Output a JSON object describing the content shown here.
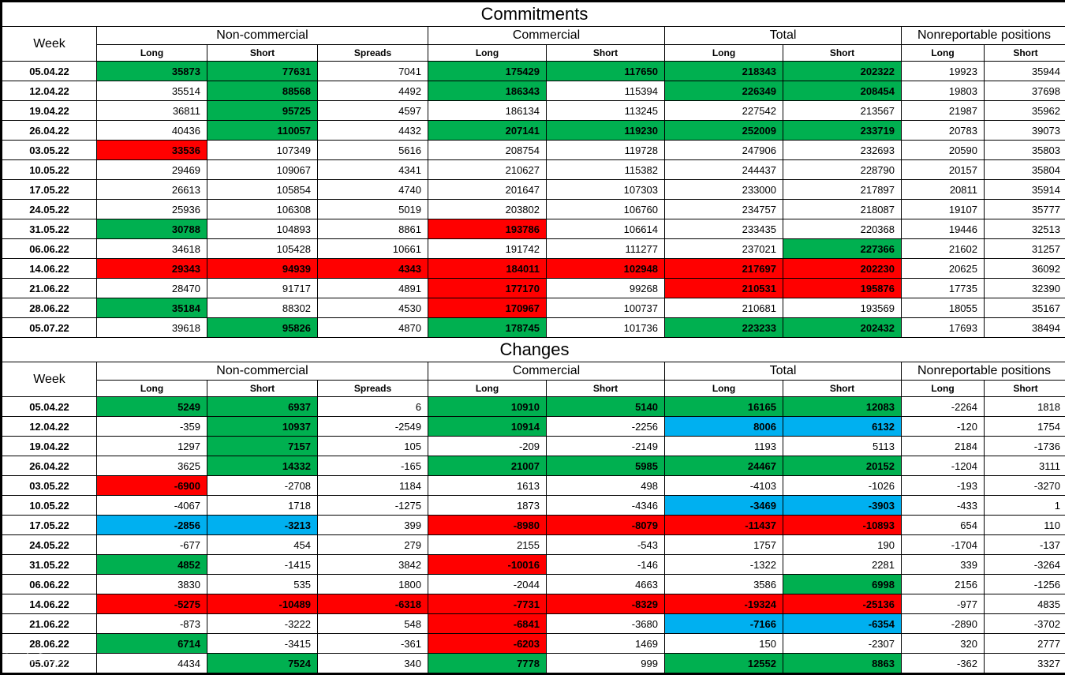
{
  "title1": "Commitments",
  "title2": "Changes",
  "week_label": "Week",
  "groups": {
    "noncom": "Non-commercial",
    "com": "Commercial",
    "tot": "Total",
    "nonrep": "Nonreportable positions"
  },
  "sub": {
    "long": "Long",
    "short": "Short",
    "spreads": "Spreads"
  },
  "colors": {
    "green": "#00b050",
    "red": "#ff0000",
    "blue": "#00b0f0",
    "none": "#ffffff"
  },
  "commitments": [
    {
      "week": "05.04.22",
      "nc_l": {
        "v": "35873",
        "c": "green"
      },
      "nc_s": {
        "v": "77631",
        "c": "green"
      },
      "nc_sp": {
        "v": "7041",
        "c": ""
      },
      "c_l": {
        "v": "175429",
        "c": "green"
      },
      "c_s": {
        "v": "117650",
        "c": "green"
      },
      "t_l": {
        "v": "218343",
        "c": "green"
      },
      "t_s": {
        "v": "202322",
        "c": "green"
      },
      "nr_l": {
        "v": "19923",
        "c": ""
      },
      "nr_s": {
        "v": "35944",
        "c": ""
      }
    },
    {
      "week": "12.04.22",
      "nc_l": {
        "v": "35514",
        "c": ""
      },
      "nc_s": {
        "v": "88568",
        "c": "green"
      },
      "nc_sp": {
        "v": "4492",
        "c": ""
      },
      "c_l": {
        "v": "186343",
        "c": "green"
      },
      "c_s": {
        "v": "115394",
        "c": ""
      },
      "t_l": {
        "v": "226349",
        "c": "green"
      },
      "t_s": {
        "v": "208454",
        "c": "green"
      },
      "nr_l": {
        "v": "19803",
        "c": ""
      },
      "nr_s": {
        "v": "37698",
        "c": ""
      }
    },
    {
      "week": "19.04.22",
      "nc_l": {
        "v": "36811",
        "c": ""
      },
      "nc_s": {
        "v": "95725",
        "c": "green"
      },
      "nc_sp": {
        "v": "4597",
        "c": ""
      },
      "c_l": {
        "v": "186134",
        "c": ""
      },
      "c_s": {
        "v": "113245",
        "c": ""
      },
      "t_l": {
        "v": "227542",
        "c": ""
      },
      "t_s": {
        "v": "213567",
        "c": ""
      },
      "nr_l": {
        "v": "21987",
        "c": ""
      },
      "nr_s": {
        "v": "35962",
        "c": ""
      }
    },
    {
      "week": "26.04.22",
      "nc_l": {
        "v": "40436",
        "c": ""
      },
      "nc_s": {
        "v": "110057",
        "c": "green"
      },
      "nc_sp": {
        "v": "4432",
        "c": ""
      },
      "c_l": {
        "v": "207141",
        "c": "green"
      },
      "c_s": {
        "v": "119230",
        "c": "green"
      },
      "t_l": {
        "v": "252009",
        "c": "green"
      },
      "t_s": {
        "v": "233719",
        "c": "green"
      },
      "nr_l": {
        "v": "20783",
        "c": ""
      },
      "nr_s": {
        "v": "39073",
        "c": ""
      }
    },
    {
      "week": "03.05.22",
      "nc_l": {
        "v": "33536",
        "c": "red"
      },
      "nc_s": {
        "v": "107349",
        "c": ""
      },
      "nc_sp": {
        "v": "5616",
        "c": ""
      },
      "c_l": {
        "v": "208754",
        "c": ""
      },
      "c_s": {
        "v": "119728",
        "c": ""
      },
      "t_l": {
        "v": "247906",
        "c": ""
      },
      "t_s": {
        "v": "232693",
        "c": ""
      },
      "nr_l": {
        "v": "20590",
        "c": ""
      },
      "nr_s": {
        "v": "35803",
        "c": ""
      }
    },
    {
      "week": "10.05.22",
      "nc_l": {
        "v": "29469",
        "c": ""
      },
      "nc_s": {
        "v": "109067",
        "c": ""
      },
      "nc_sp": {
        "v": "4341",
        "c": ""
      },
      "c_l": {
        "v": "210627",
        "c": ""
      },
      "c_s": {
        "v": "115382",
        "c": ""
      },
      "t_l": {
        "v": "244437",
        "c": ""
      },
      "t_s": {
        "v": "228790",
        "c": ""
      },
      "nr_l": {
        "v": "20157",
        "c": ""
      },
      "nr_s": {
        "v": "35804",
        "c": ""
      }
    },
    {
      "week": "17.05.22",
      "nc_l": {
        "v": "26613",
        "c": ""
      },
      "nc_s": {
        "v": "105854",
        "c": ""
      },
      "nc_sp": {
        "v": "4740",
        "c": ""
      },
      "c_l": {
        "v": "201647",
        "c": ""
      },
      "c_s": {
        "v": "107303",
        "c": ""
      },
      "t_l": {
        "v": "233000",
        "c": ""
      },
      "t_s": {
        "v": "217897",
        "c": ""
      },
      "nr_l": {
        "v": "20811",
        "c": ""
      },
      "nr_s": {
        "v": "35914",
        "c": ""
      }
    },
    {
      "week": "24.05.22",
      "nc_l": {
        "v": "25936",
        "c": ""
      },
      "nc_s": {
        "v": "106308",
        "c": ""
      },
      "nc_sp": {
        "v": "5019",
        "c": ""
      },
      "c_l": {
        "v": "203802",
        "c": ""
      },
      "c_s": {
        "v": "106760",
        "c": ""
      },
      "t_l": {
        "v": "234757",
        "c": ""
      },
      "t_s": {
        "v": "218087",
        "c": ""
      },
      "nr_l": {
        "v": "19107",
        "c": ""
      },
      "nr_s": {
        "v": "35777",
        "c": ""
      }
    },
    {
      "week": "31.05.22",
      "nc_l": {
        "v": "30788",
        "c": "green"
      },
      "nc_s": {
        "v": "104893",
        "c": ""
      },
      "nc_sp": {
        "v": "8861",
        "c": ""
      },
      "c_l": {
        "v": "193786",
        "c": "red"
      },
      "c_s": {
        "v": "106614",
        "c": ""
      },
      "t_l": {
        "v": "233435",
        "c": ""
      },
      "t_s": {
        "v": "220368",
        "c": ""
      },
      "nr_l": {
        "v": "19446",
        "c": ""
      },
      "nr_s": {
        "v": "32513",
        "c": ""
      }
    },
    {
      "week": "06.06.22",
      "nc_l": {
        "v": "34618",
        "c": ""
      },
      "nc_s": {
        "v": "105428",
        "c": ""
      },
      "nc_sp": {
        "v": "10661",
        "c": ""
      },
      "c_l": {
        "v": "191742",
        "c": ""
      },
      "c_s": {
        "v": "111277",
        "c": ""
      },
      "t_l": {
        "v": "237021",
        "c": ""
      },
      "t_s": {
        "v": "227366",
        "c": "green"
      },
      "nr_l": {
        "v": "21602",
        "c": ""
      },
      "nr_s": {
        "v": "31257",
        "c": ""
      }
    },
    {
      "week": "14.06.22",
      "nc_l": {
        "v": "29343",
        "c": "red"
      },
      "nc_s": {
        "v": "94939",
        "c": "red"
      },
      "nc_sp": {
        "v": "4343",
        "c": "red"
      },
      "c_l": {
        "v": "184011",
        "c": "red"
      },
      "c_s": {
        "v": "102948",
        "c": "red"
      },
      "t_l": {
        "v": "217697",
        "c": "red"
      },
      "t_s": {
        "v": "202230",
        "c": "red"
      },
      "nr_l": {
        "v": "20625",
        "c": ""
      },
      "nr_s": {
        "v": "36092",
        "c": ""
      }
    },
    {
      "week": "21.06.22",
      "nc_l": {
        "v": "28470",
        "c": ""
      },
      "nc_s": {
        "v": "91717",
        "c": ""
      },
      "nc_sp": {
        "v": "4891",
        "c": ""
      },
      "c_l": {
        "v": "177170",
        "c": "red"
      },
      "c_s": {
        "v": "99268",
        "c": ""
      },
      "t_l": {
        "v": "210531",
        "c": "red"
      },
      "t_s": {
        "v": "195876",
        "c": "red"
      },
      "nr_l": {
        "v": "17735",
        "c": ""
      },
      "nr_s": {
        "v": "32390",
        "c": ""
      }
    },
    {
      "week": "28.06.22",
      "nc_l": {
        "v": "35184",
        "c": "green"
      },
      "nc_s": {
        "v": "88302",
        "c": ""
      },
      "nc_sp": {
        "v": "4530",
        "c": ""
      },
      "c_l": {
        "v": "170967",
        "c": "red"
      },
      "c_s": {
        "v": "100737",
        "c": ""
      },
      "t_l": {
        "v": "210681",
        "c": ""
      },
      "t_s": {
        "v": "193569",
        "c": ""
      },
      "nr_l": {
        "v": "18055",
        "c": ""
      },
      "nr_s": {
        "v": "35167",
        "c": ""
      }
    },
    {
      "week": "05.07.22",
      "nc_l": {
        "v": "39618",
        "c": ""
      },
      "nc_s": {
        "v": "95826",
        "c": "green"
      },
      "nc_sp": {
        "v": "4870",
        "c": ""
      },
      "c_l": {
        "v": "178745",
        "c": "green"
      },
      "c_s": {
        "v": "101736",
        "c": ""
      },
      "t_l": {
        "v": "223233",
        "c": "green"
      },
      "t_s": {
        "v": "202432",
        "c": "green"
      },
      "nr_l": {
        "v": "17693",
        "c": ""
      },
      "nr_s": {
        "v": "38494",
        "c": ""
      }
    }
  ],
  "changes": [
    {
      "week": "05.04.22",
      "nc_l": {
        "v": "5249",
        "c": "green"
      },
      "nc_s": {
        "v": "6937",
        "c": "green"
      },
      "nc_sp": {
        "v": "6",
        "c": ""
      },
      "c_l": {
        "v": "10910",
        "c": "green"
      },
      "c_s": {
        "v": "5140",
        "c": "green"
      },
      "t_l": {
        "v": "16165",
        "c": "green"
      },
      "t_s": {
        "v": "12083",
        "c": "green"
      },
      "nr_l": {
        "v": "-2264",
        "c": ""
      },
      "nr_s": {
        "v": "1818",
        "c": ""
      }
    },
    {
      "week": "12.04.22",
      "nc_l": {
        "v": "-359",
        "c": ""
      },
      "nc_s": {
        "v": "10937",
        "c": "green"
      },
      "nc_sp": {
        "v": "-2549",
        "c": ""
      },
      "c_l": {
        "v": "10914",
        "c": "green"
      },
      "c_s": {
        "v": "-2256",
        "c": ""
      },
      "t_l": {
        "v": "8006",
        "c": "blue"
      },
      "t_s": {
        "v": "6132",
        "c": "blue"
      },
      "nr_l": {
        "v": "-120",
        "c": ""
      },
      "nr_s": {
        "v": "1754",
        "c": ""
      }
    },
    {
      "week": "19.04.22",
      "nc_l": {
        "v": "1297",
        "c": ""
      },
      "nc_s": {
        "v": "7157",
        "c": "green"
      },
      "nc_sp": {
        "v": "105",
        "c": ""
      },
      "c_l": {
        "v": "-209",
        "c": ""
      },
      "c_s": {
        "v": "-2149",
        "c": ""
      },
      "t_l": {
        "v": "1193",
        "c": ""
      },
      "t_s": {
        "v": "5113",
        "c": ""
      },
      "nr_l": {
        "v": "2184",
        "c": ""
      },
      "nr_s": {
        "v": "-1736",
        "c": ""
      }
    },
    {
      "week": "26.04.22",
      "nc_l": {
        "v": "3625",
        "c": ""
      },
      "nc_s": {
        "v": "14332",
        "c": "green"
      },
      "nc_sp": {
        "v": "-165",
        "c": ""
      },
      "c_l": {
        "v": "21007",
        "c": "green"
      },
      "c_s": {
        "v": "5985",
        "c": "green"
      },
      "t_l": {
        "v": "24467",
        "c": "green"
      },
      "t_s": {
        "v": "20152",
        "c": "green"
      },
      "nr_l": {
        "v": "-1204",
        "c": ""
      },
      "nr_s": {
        "v": "3111",
        "c": ""
      }
    },
    {
      "week": "03.05.22",
      "nc_l": {
        "v": "-6900",
        "c": "red"
      },
      "nc_s": {
        "v": "-2708",
        "c": ""
      },
      "nc_sp": {
        "v": "1184",
        "c": ""
      },
      "c_l": {
        "v": "1613",
        "c": ""
      },
      "c_s": {
        "v": "498",
        "c": ""
      },
      "t_l": {
        "v": "-4103",
        "c": ""
      },
      "t_s": {
        "v": "-1026",
        "c": ""
      },
      "nr_l": {
        "v": "-193",
        "c": ""
      },
      "nr_s": {
        "v": "-3270",
        "c": ""
      }
    },
    {
      "week": "10.05.22",
      "nc_l": {
        "v": "-4067",
        "c": ""
      },
      "nc_s": {
        "v": "1718",
        "c": ""
      },
      "nc_sp": {
        "v": "-1275",
        "c": ""
      },
      "c_l": {
        "v": "1873",
        "c": ""
      },
      "c_s": {
        "v": "-4346",
        "c": ""
      },
      "t_l": {
        "v": "-3469",
        "c": "blue"
      },
      "t_s": {
        "v": "-3903",
        "c": "blue"
      },
      "nr_l": {
        "v": "-433",
        "c": ""
      },
      "nr_s": {
        "v": "1",
        "c": ""
      }
    },
    {
      "week": "17.05.22",
      "nc_l": {
        "v": "-2856",
        "c": "blue"
      },
      "nc_s": {
        "v": "-3213",
        "c": "blue"
      },
      "nc_sp": {
        "v": "399",
        "c": ""
      },
      "c_l": {
        "v": "-8980",
        "c": "red"
      },
      "c_s": {
        "v": "-8079",
        "c": "red"
      },
      "t_l": {
        "v": "-11437",
        "c": "red"
      },
      "t_s": {
        "v": "-10893",
        "c": "red"
      },
      "nr_l": {
        "v": "654",
        "c": ""
      },
      "nr_s": {
        "v": "110",
        "c": ""
      }
    },
    {
      "week": "24.05.22",
      "nc_l": {
        "v": "-677",
        "c": ""
      },
      "nc_s": {
        "v": "454",
        "c": ""
      },
      "nc_sp": {
        "v": "279",
        "c": ""
      },
      "c_l": {
        "v": "2155",
        "c": ""
      },
      "c_s": {
        "v": "-543",
        "c": ""
      },
      "t_l": {
        "v": "1757",
        "c": ""
      },
      "t_s": {
        "v": "190",
        "c": ""
      },
      "nr_l": {
        "v": "-1704",
        "c": ""
      },
      "nr_s": {
        "v": "-137",
        "c": ""
      }
    },
    {
      "week": "31.05.22",
      "nc_l": {
        "v": "4852",
        "c": "green"
      },
      "nc_s": {
        "v": "-1415",
        "c": ""
      },
      "nc_sp": {
        "v": "3842",
        "c": ""
      },
      "c_l": {
        "v": "-10016",
        "c": "red"
      },
      "c_s": {
        "v": "-146",
        "c": ""
      },
      "t_l": {
        "v": "-1322",
        "c": ""
      },
      "t_s": {
        "v": "2281",
        "c": ""
      },
      "nr_l": {
        "v": "339",
        "c": ""
      },
      "nr_s": {
        "v": "-3264",
        "c": ""
      }
    },
    {
      "week": "06.06.22",
      "nc_l": {
        "v": "3830",
        "c": ""
      },
      "nc_s": {
        "v": "535",
        "c": ""
      },
      "nc_sp": {
        "v": "1800",
        "c": ""
      },
      "c_l": {
        "v": "-2044",
        "c": ""
      },
      "c_s": {
        "v": "4663",
        "c": ""
      },
      "t_l": {
        "v": "3586",
        "c": ""
      },
      "t_s": {
        "v": "6998",
        "c": "green"
      },
      "nr_l": {
        "v": "2156",
        "c": ""
      },
      "nr_s": {
        "v": "-1256",
        "c": ""
      }
    },
    {
      "week": "14.06.22",
      "nc_l": {
        "v": "-5275",
        "c": "red"
      },
      "nc_s": {
        "v": "-10489",
        "c": "red"
      },
      "nc_sp": {
        "v": "-6318",
        "c": "red"
      },
      "c_l": {
        "v": "-7731",
        "c": "red"
      },
      "c_s": {
        "v": "-8329",
        "c": "red"
      },
      "t_l": {
        "v": "-19324",
        "c": "red"
      },
      "t_s": {
        "v": "-25136",
        "c": "red"
      },
      "nr_l": {
        "v": "-977",
        "c": ""
      },
      "nr_s": {
        "v": "4835",
        "c": ""
      }
    },
    {
      "week": "21.06.22",
      "nc_l": {
        "v": "-873",
        "c": ""
      },
      "nc_s": {
        "v": "-3222",
        "c": ""
      },
      "nc_sp": {
        "v": "548",
        "c": ""
      },
      "c_l": {
        "v": "-6841",
        "c": "red"
      },
      "c_s": {
        "v": "-3680",
        "c": ""
      },
      "t_l": {
        "v": "-7166",
        "c": "blue"
      },
      "t_s": {
        "v": "-6354",
        "c": "blue"
      },
      "nr_l": {
        "v": "-2890",
        "c": ""
      },
      "nr_s": {
        "v": "-3702",
        "c": ""
      }
    },
    {
      "week": "28.06.22",
      "nc_l": {
        "v": "6714",
        "c": "green"
      },
      "nc_s": {
        "v": "-3415",
        "c": ""
      },
      "nc_sp": {
        "v": "-361",
        "c": ""
      },
      "c_l": {
        "v": "-6203",
        "c": "red"
      },
      "c_s": {
        "v": "1469",
        "c": ""
      },
      "t_l": {
        "v": "150",
        "c": ""
      },
      "t_s": {
        "v": "-2307",
        "c": ""
      },
      "nr_l": {
        "v": "320",
        "c": ""
      },
      "nr_s": {
        "v": "2777",
        "c": ""
      }
    },
    {
      "week": "05.07.22",
      "nc_l": {
        "v": "4434",
        "c": ""
      },
      "nc_s": {
        "v": "7524",
        "c": "green"
      },
      "nc_sp": {
        "v": "340",
        "c": ""
      },
      "c_l": {
        "v": "7778",
        "c": "green"
      },
      "c_s": {
        "v": "999",
        "c": ""
      },
      "t_l": {
        "v": "12552",
        "c": "green"
      },
      "t_s": {
        "v": "8863",
        "c": "green"
      },
      "nr_l": {
        "v": "-362",
        "c": ""
      },
      "nr_s": {
        "v": "3327",
        "c": ""
      }
    }
  ],
  "watermark": {
    "brand": "instaforex",
    "sub": "Instant Forex Trading"
  }
}
